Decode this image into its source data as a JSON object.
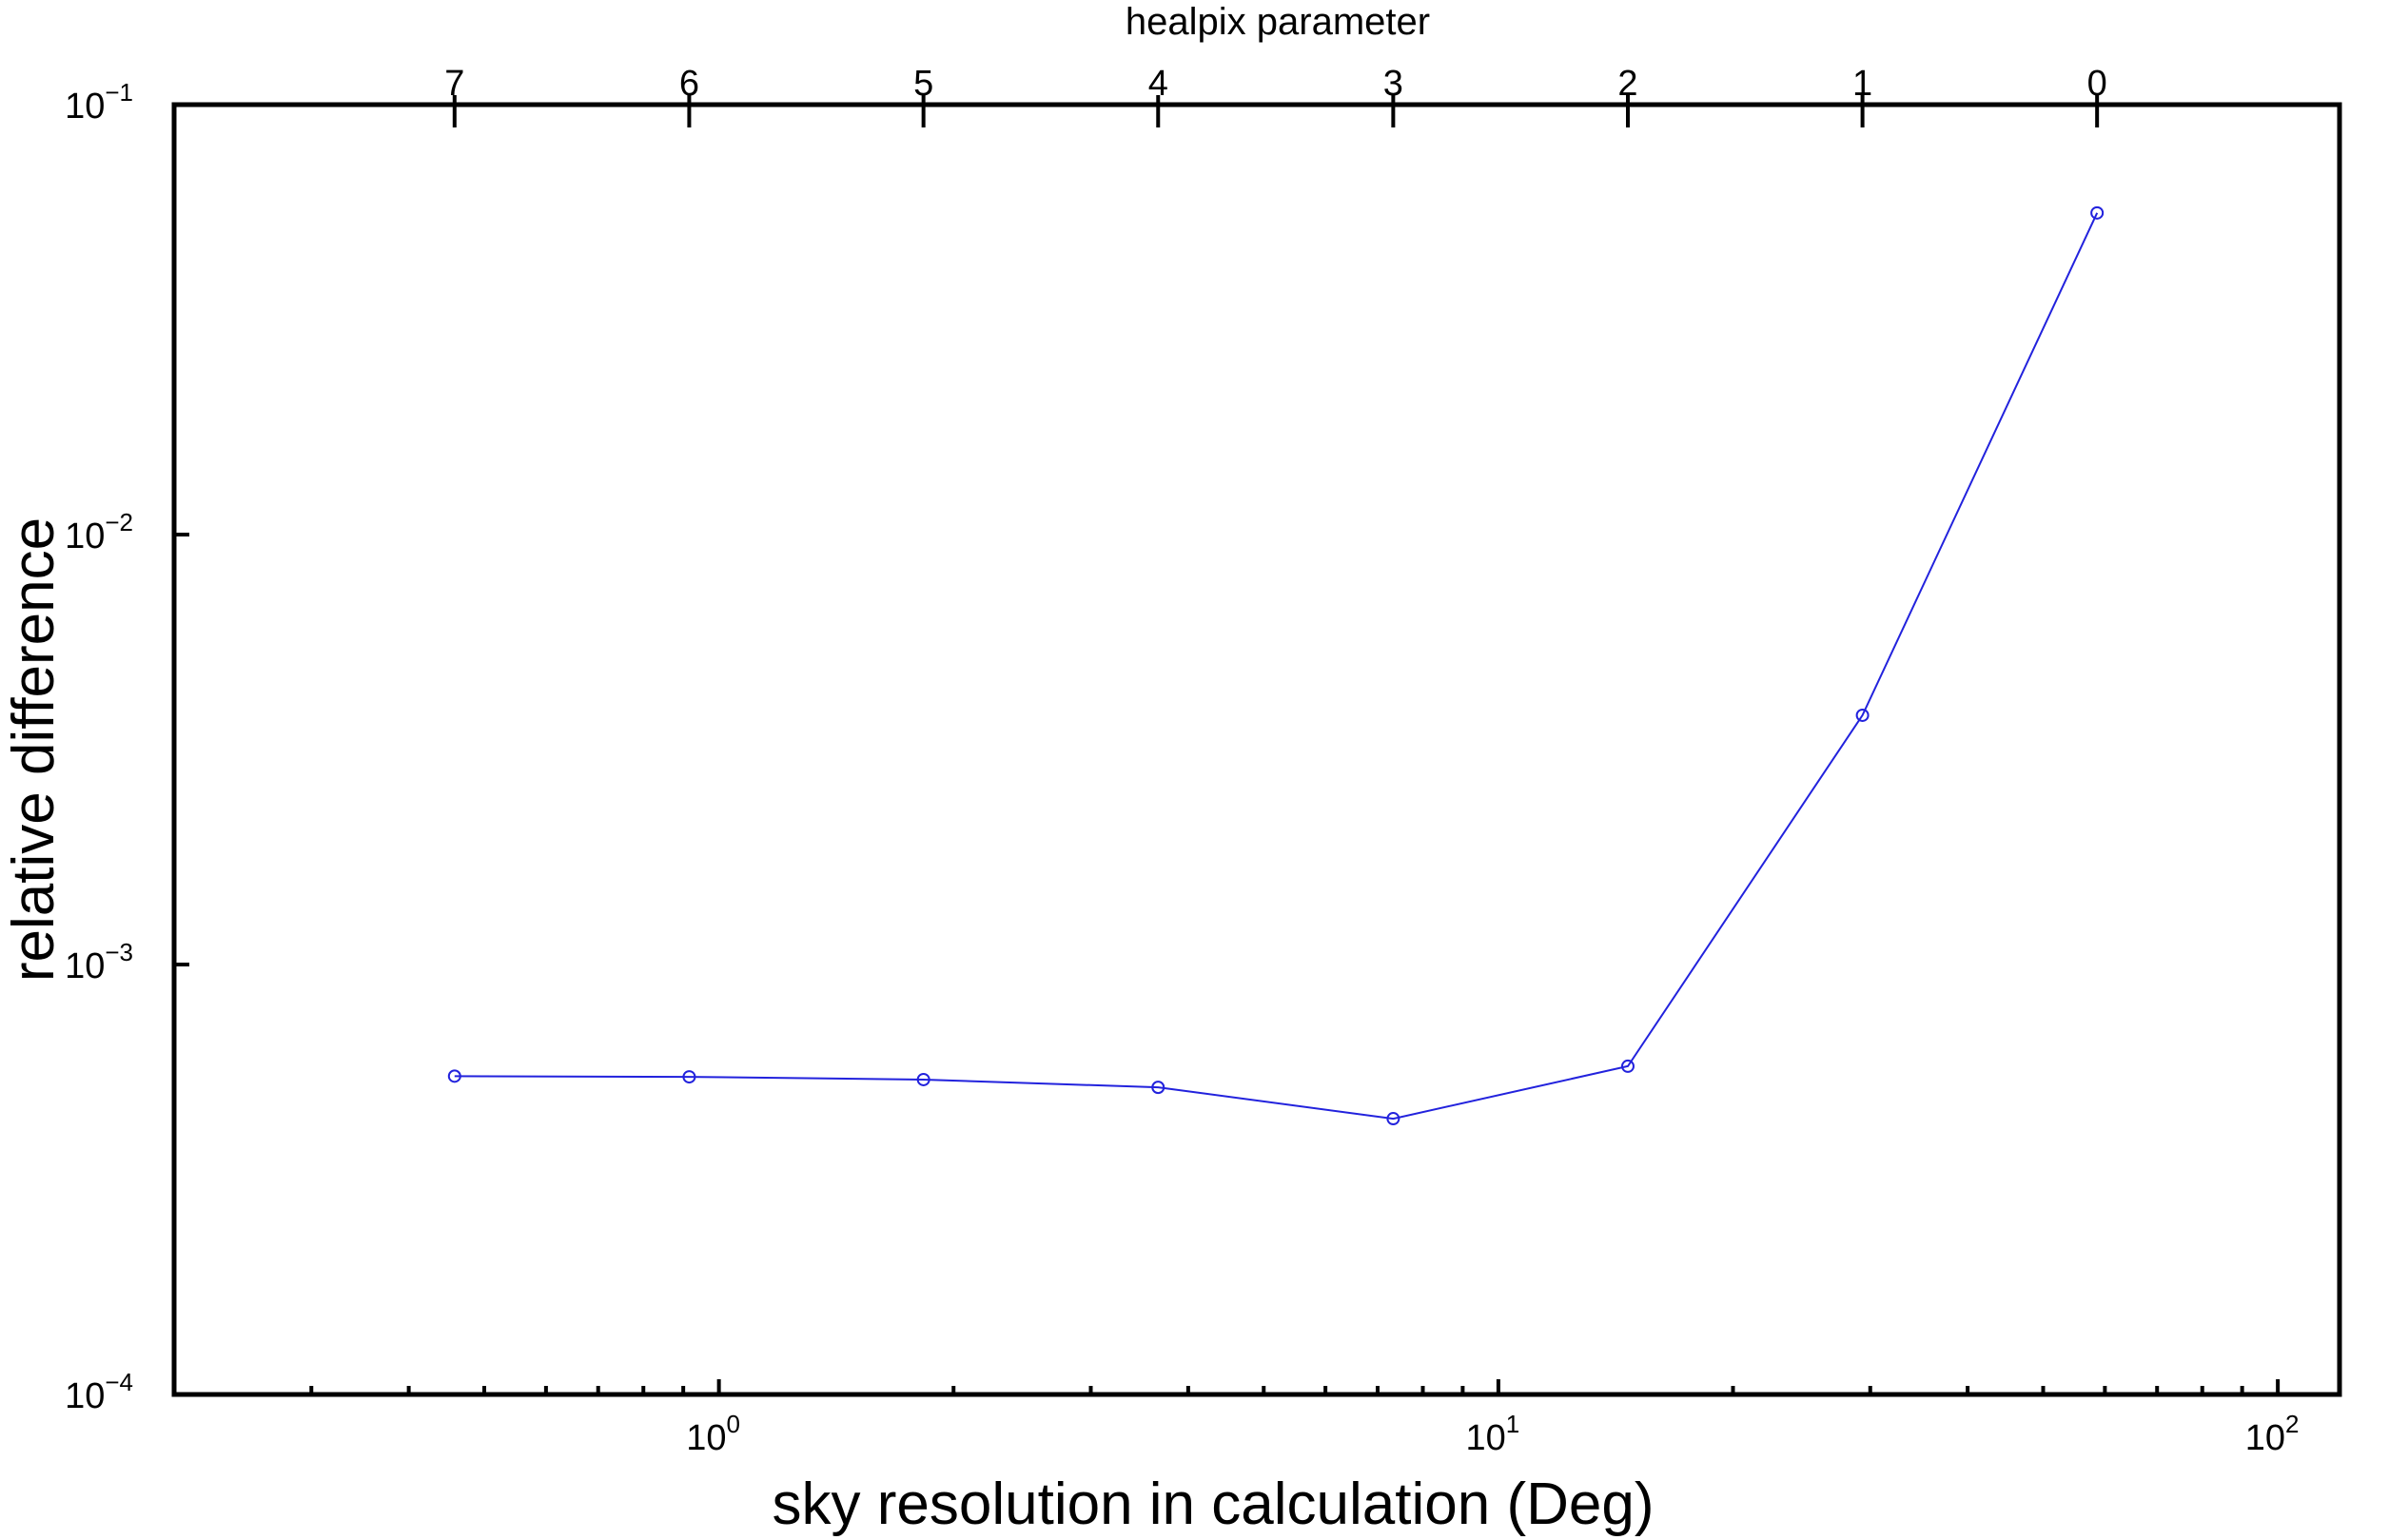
{
  "chart_data": {
    "type": "line",
    "title": "",
    "xlabel": "sky resolution in calculation (Deg)",
    "ylabel": "relative difference",
    "top_xlabel": "healpix parameter",
    "x_scale": "log",
    "y_scale": "log",
    "xlim": [
      0.2,
      120
    ],
    "ylim": [
      0.0001,
      0.1
    ],
    "grid": false,
    "legend": "none",
    "x_ticks": [
      {
        "base": "10",
        "exp": "0",
        "value": 1
      },
      {
        "base": "10",
        "exp": "1",
        "value": 10
      },
      {
        "base": "10",
        "exp": "2",
        "value": 100
      }
    ],
    "y_ticks": [
      {
        "base": "10",
        "exp": "−1",
        "value": 0.1
      },
      {
        "base": "10",
        "exp": "−2",
        "value": 0.01
      },
      {
        "base": "10",
        "exp": "−3",
        "value": 0.001
      },
      {
        "base": "10",
        "exp": "−4",
        "value": 0.0001
      }
    ],
    "top_ticks": [
      {
        "label": "7",
        "x": 0.458
      },
      {
        "label": "6",
        "x": 0.916
      },
      {
        "label": "5",
        "x": 1.83
      },
      {
        "label": "4",
        "x": 3.66
      },
      {
        "label": "3",
        "x": 7.33
      },
      {
        "label": "2",
        "x": 14.66
      },
      {
        "label": "1",
        "x": 29.32
      },
      {
        "label": "0",
        "x": 58.63
      }
    ],
    "series": [
      {
        "color": "#2222dd",
        "marker": "circle",
        "x": [
          0.458,
          0.916,
          1.83,
          3.66,
          7.33,
          14.66,
          29.32,
          58.63
        ],
        "y": [
          0.00055,
          0.000548,
          0.00054,
          0.000518,
          0.000438,
          0.00058,
          0.0038,
          0.056
        ]
      }
    ]
  }
}
